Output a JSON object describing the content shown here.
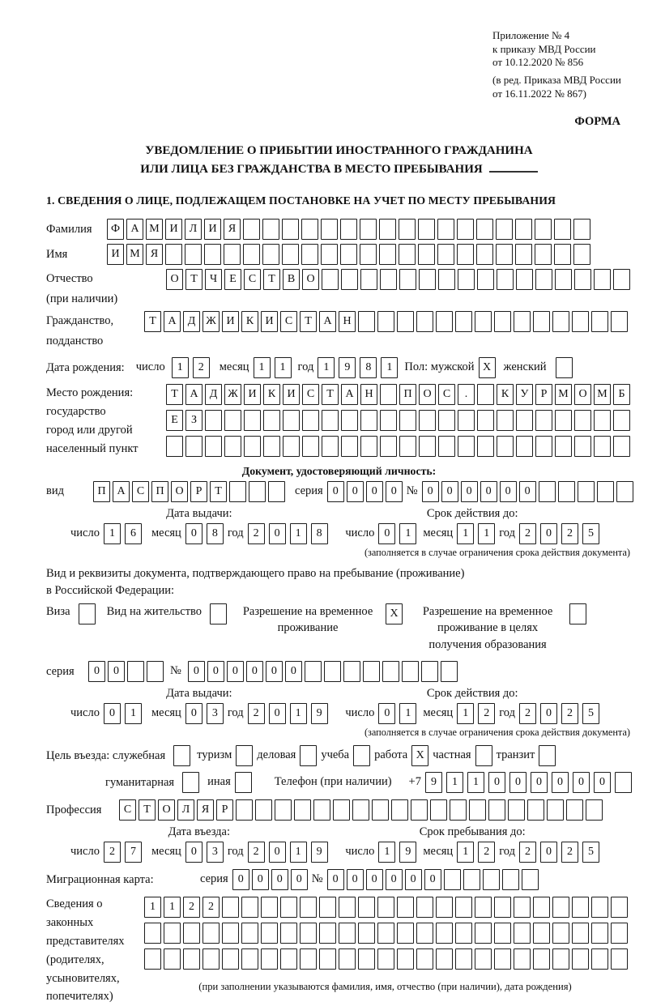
{
  "annex": {
    "block1": [
      "Приложение № 4",
      "к приказу МВД России",
      "от 10.12.2020 № 856"
    ],
    "block2": [
      "(в ред. Приказа МВД России",
      "от 16.11.2022 № 867)"
    ]
  },
  "forma_label": "ФОРМА",
  "title": {
    "line1": "УВЕДОМЛЕНИЕ О ПРИБЫТИИ ИНОСТРАННОГО ГРАЖДАНИНА",
    "line2": "ИЛИ ЛИЦА БЕЗ ГРАЖДАНСТВА В МЕСТО ПРЕБЫВАНИЯ"
  },
  "section1_heading": "1. СВЕДЕНИЯ О ЛИЦЕ, ПОДЛЕЖАЩЕМ ПОСТАНОВКЕ НА УЧЕТ ПО МЕСТУ ПРЕБЫВАНИЯ",
  "common": {
    "day": "число",
    "month": "месяц",
    "year": "год",
    "series": "серия",
    "number": "№"
  },
  "surname": {
    "label": "Фамилия",
    "cells": "ФАМИЛИЯ__________________"
  },
  "name": {
    "label": "Имя",
    "cells": "ИМЯ______________________"
  },
  "patronymic": {
    "label1": "Отчество",
    "label2": "(при наличии)",
    "cells": "ОТЧЕСТВО________________"
  },
  "citizenship": {
    "label1": "Гражданство,",
    "label2": "подданство",
    "cells": "ТАДЖИКИСТАН______________"
  },
  "birth": {
    "label": "Дата рождения:",
    "day": "12",
    "month": "11",
    "year": "1981",
    "sex_label": "Пол: мужской",
    "male": "X",
    "female_label": "женский",
    "female": "_"
  },
  "birthplace": {
    "labels": [
      "Место рождения:",
      "государство",
      "город или другой",
      "населенный пункт"
    ],
    "row1": "ТАДЖИКИСТАН_ПОС._КУРМОМБ",
    "row2": "ЕЗ______________________",
    "row3": "________________________"
  },
  "identity_doc": {
    "heading": "Документ, удостоверяющий личность:",
    "type_label": "вид",
    "type_cells": "ПАСПОРТ___",
    "series_cells": "0000",
    "number_cells": "000000_____",
    "issue_heading": "Дата выдачи:",
    "issue_day": "16",
    "issue_month": "08",
    "issue_year": "2018",
    "valid_heading": "Срок действия до:",
    "valid_day": "01",
    "valid_month": "11",
    "valid_year": "2025",
    "footnote": "(заполняется в случае ограничения срока действия документа)"
  },
  "residence_doc": {
    "intro1": "Вид и реквизиты документа, подтверждающего право на пребывание (проживание)",
    "intro2": "в Российской Федерации:",
    "opt_visa_label": "Виза",
    "opt_visa": "_",
    "opt_residence_label": "Вид на жительство",
    "opt_residence": "_",
    "opt_temp_label": "Разрешение на временное проживание",
    "opt_temp": "X",
    "opt_edu_label": "Разрешение на временное проживание в целях получения образования",
    "opt_edu": "_",
    "series_cells": "00__",
    "number_cells": "000000________",
    "issue_heading": "Дата выдачи:",
    "issue_day": "01",
    "issue_month": "03",
    "issue_year": "2019",
    "valid_heading": "Срок действия до:",
    "valid_day": "01",
    "valid_month": "12",
    "valid_year": "2025",
    "footnote": "(заполняется в случае ограничения срока действия документа)"
  },
  "purpose": {
    "label": "Цель въезда: служебная",
    "opt1": "_",
    "tourism_label": "туризм",
    "tourism": "_",
    "business_label": "деловая",
    "business": "_",
    "study_label": "учеба",
    "study": "_",
    "work_label": "работа",
    "work": "X",
    "private_label": "частная",
    "private": "_",
    "transit_label": "транзит",
    "transit": "_",
    "humanitarian_label": "гуманитарная",
    "humanitarian": "_",
    "other_label": "иная",
    "other": "_",
    "phone_label": "Телефон (при наличии)",
    "phone_prefix": "+7",
    "phone_cells": "911000000_"
  },
  "profession": {
    "label": "Профессия",
    "cells": "СТОЛЯР___________________"
  },
  "entry": {
    "issue_heading": "Дата въезда:",
    "issue_day": "27",
    "issue_month": "03",
    "issue_year": "2019",
    "valid_heading": "Срок пребывания до:",
    "valid_day": "19",
    "valid_month": "12",
    "valid_year": "2025"
  },
  "migration_card": {
    "label": "Миграционная карта:",
    "series_cells": "0000",
    "number_cells": "000000_____"
  },
  "representatives": {
    "labels": [
      "Сведения о",
      "законных",
      "представителях",
      "(родителях,",
      "усыновителях,",
      "попечителях)"
    ],
    "row1": "1122_____________________",
    "row2": "_________________________",
    "row3": "_________________________",
    "footnote": "(при заполнении указываются фамилия, имя, отчество (при наличии), дата рождения)"
  }
}
